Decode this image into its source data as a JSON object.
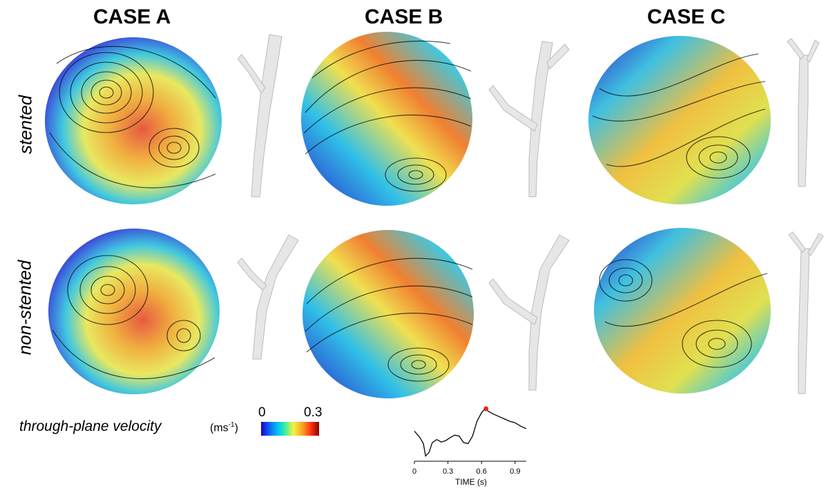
{
  "columns": [
    {
      "title": "CASE A"
    },
    {
      "title": "CASE B"
    },
    {
      "title": "CASE C"
    }
  ],
  "rows": [
    {
      "label": "stented"
    },
    {
      "label": "non-stented"
    }
  ],
  "legend": {
    "label": "through-plane velocity",
    "unit_base": "(ms",
    "unit_exp": "-1",
    "unit_close": ")",
    "min": "0",
    "max": "0.3"
  },
  "waveform": {
    "xlabel": "TIME (s)",
    "xticks": [
      "0",
      "0.3",
      "0.6",
      "0.9"
    ],
    "marker_color": "#e8271c"
  },
  "colors": {
    "velocity_low": "#1800c8",
    "velocity_high": "#8a0000"
  },
  "chart_data": {
    "type": "line",
    "xlabel": "TIME (s)",
    "ylabel": "",
    "xlim": [
      0,
      1.0
    ],
    "x": [
      0.0,
      0.02,
      0.05,
      0.08,
      0.1,
      0.13,
      0.16,
      0.2,
      0.24,
      0.28,
      0.32,
      0.36,
      0.4,
      0.44,
      0.48,
      0.52,
      0.56,
      0.6,
      0.63,
      0.66,
      0.7,
      0.75,
      0.8,
      0.85,
      0.9,
      0.95,
      1.0
    ],
    "y": [
      0.55,
      0.5,
      0.42,
      0.3,
      0.05,
      0.12,
      0.32,
      0.38,
      0.33,
      0.36,
      0.42,
      0.47,
      0.45,
      0.32,
      0.3,
      0.45,
      0.75,
      0.92,
      1.0,
      0.95,
      0.9,
      0.85,
      0.8,
      0.75,
      0.72,
      0.65,
      0.6
    ],
    "highlight": {
      "x": 0.64,
      "y": 1.0
    }
  }
}
